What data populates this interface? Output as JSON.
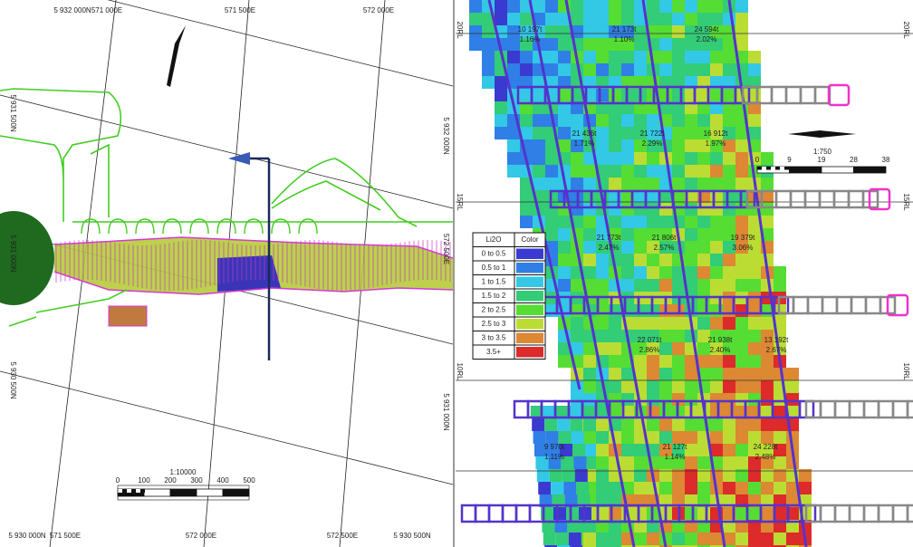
{
  "left_map": {
    "grid_labels": [
      "5 932 000N",
      "571 000E",
      "571 500E",
      "572 000E",
      "5 931 500N",
      "5 932 000N",
      "5 931 000N",
      "572 500E",
      "5 930 500N",
      "5 931 000N",
      "5 930 000N",
      "571 500E",
      "572 000E",
      "572 500E",
      "5 930 500N"
    ],
    "scale": {
      "ratio": "1:10000",
      "labels": [
        "0",
        "100",
        "200",
        "300",
        "400",
        "500"
      ]
    }
  },
  "right_section": {
    "rl_labels": [
      "20RL",
      "20RL",
      "15RL",
      "15RL",
      "10RL",
      "10RL"
    ],
    "blocks": [
      {
        "tonnes": "10 197t",
        "grade": "1.16%"
      },
      {
        "tonnes": "21 173t",
        "grade": "1.10%"
      },
      {
        "tonnes": "24 594t",
        "grade": "2.02%"
      },
      {
        "tonnes": "21 436t",
        "grade": "1.71%"
      },
      {
        "tonnes": "21 722t",
        "grade": "2.29%"
      },
      {
        "tonnes": "16 912t",
        "grade": "1.97%"
      },
      {
        "tonnes": "21 773t",
        "grade": "2.47%"
      },
      {
        "tonnes": "21 806t",
        "grade": "2.57%"
      },
      {
        "tonnes": "19 379t",
        "grade": "3.06%"
      },
      {
        "tonnes": "22 071t",
        "grade": "2.86%"
      },
      {
        "tonnes": "21 938t",
        "grade": "2.40%"
      },
      {
        "tonnes": "13 192t",
        "grade": "2.67%"
      },
      {
        "tonnes": "9 970t",
        "grade": "1.11%"
      },
      {
        "tonnes": "21 127t",
        "grade": "1.14%"
      },
      {
        "tonnes": "24 228t",
        "grade": "2.48%"
      }
    ],
    "legend": {
      "title": "Li2O",
      "color_header": "Color",
      "items": [
        {
          "label": "0 to 0.5",
          "color": "#3a3ad0"
        },
        {
          "label": "0.5 to 1",
          "color": "#2f7fe6"
        },
        {
          "label": "1 to 1.5",
          "color": "#33c8e6"
        },
        {
          "label": "1.5 to 2",
          "color": "#33cc77"
        },
        {
          "label": "2 to 2.5",
          "color": "#55dd33"
        },
        {
          "label": "2.5 to 3",
          "color": "#bbdd33"
        },
        {
          "label": "3 to 3.5",
          "color": "#dd8833"
        },
        {
          "label": "3.5+",
          "color": "#dd2a2a"
        }
      ]
    },
    "scale": {
      "ratio": "1:750",
      "labels": [
        "0",
        "9",
        "19",
        "28",
        "38"
      ]
    }
  }
}
